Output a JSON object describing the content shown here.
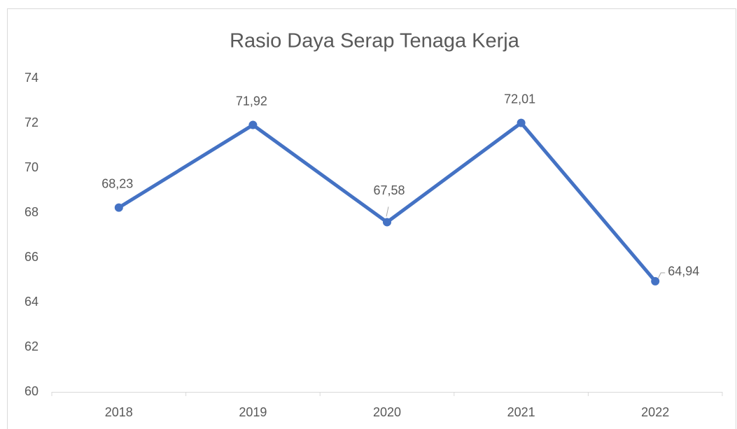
{
  "chart_data": {
    "type": "line",
    "title": "Rasio Daya Serap Tenaga Kerja",
    "categories": [
      "2018",
      "2019",
      "2020",
      "2021",
      "2022"
    ],
    "series": [
      {
        "name": "Rasio Daya Serap Tenaga Kerja",
        "color": "#4472c4",
        "values": [
          68.23,
          71.92,
          67.58,
          72.01,
          64.94
        ],
        "value_labels": [
          "68,23",
          "71,92",
          "67,58",
          "72,01",
          "64,94"
        ]
      }
    ],
    "ylim": [
      60,
      74
    ],
    "yticks": [
      60,
      62,
      64,
      66,
      68,
      70,
      72,
      74
    ],
    "grid": false,
    "legend": false
  }
}
